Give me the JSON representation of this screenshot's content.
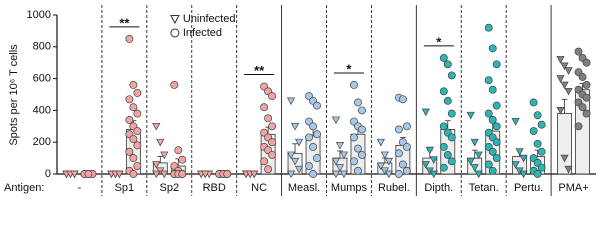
{
  "chart_data": {
    "type": "dot-bar",
    "y_label": "Spots per 10⁶ T cells",
    "row_label": "Antigen:",
    "categories": [
      "-",
      "Sp1",
      "Sp2",
      "RBD",
      "NC",
      "Measl.",
      "Mumps",
      "Rubel.",
      "Dipth.",
      "Tetan.",
      "Pertu.",
      "PMA+"
    ],
    "colors": [
      "#f2a3a3",
      "#f2a3a3",
      "#f2a3a3",
      "#f2a3a3",
      "#f2a3a3",
      "#a8c8ea",
      "#a8c8ea",
      "#a8c8ea",
      "#2bb5b5",
      "#2bb5b5",
      "#2bb5b5",
      "#808080"
    ],
    "dividers": [
      "dashed",
      "dashed",
      "dashed",
      "dashed",
      "solid",
      "dashed",
      "dashed",
      "solid",
      "dashed",
      "dashed",
      "solid"
    ],
    "ylim": [
      0,
      1000
    ],
    "yticks": [
      0,
      200,
      400,
      600,
      800,
      1000
    ],
    "series": [
      {
        "name": "Uninfected",
        "marker": "triangle",
        "means": [
          0,
          0,
          70,
          0,
          0,
          130,
          100,
          70,
          100,
          100,
          110,
          380
        ],
        "errors": [
          0,
          0,
          40,
          0,
          0,
          60,
          45,
          30,
          50,
          50,
          45,
          90
        ],
        "points": [
          [
            0,
            0,
            0,
            0,
            0,
            0
          ],
          [
            0,
            0,
            0,
            0,
            0,
            0
          ],
          [
            300,
            200,
            120,
            60,
            20,
            0,
            0
          ],
          [
            0,
            0,
            0,
            0,
            0
          ],
          [
            0,
            0,
            0,
            0,
            0,
            0
          ],
          [
            460,
            300,
            200,
            120,
            80,
            30,
            0
          ],
          [
            340,
            180,
            120,
            80,
            40,
            0,
            0
          ],
          [
            200,
            120,
            80,
            50,
            20,
            0
          ],
          [
            390,
            150,
            90,
            60,
            20,
            0
          ],
          [
            370,
            200,
            120,
            80,
            40,
            0
          ],
          [
            330,
            140,
            100,
            60,
            20,
            0
          ],
          [
            720,
            680,
            650,
            600,
            560,
            520,
            400,
            100,
            30
          ]
        ]
      },
      {
        "name": "Infected",
        "marker": "circle",
        "means": [
          0,
          280,
          50,
          0,
          250,
          240,
          250,
          180,
          280,
          270,
          110,
          530
        ],
        "errors": [
          0,
          55,
          45,
          0,
          45,
          45,
          50,
          50,
          55,
          55,
          40,
          40
        ],
        "points": [
          [
            0,
            0,
            0,
            0,
            0,
            0,
            0,
            0
          ],
          [
            850,
            560,
            510,
            470,
            420,
            380,
            340,
            300,
            270,
            250,
            220,
            180,
            140,
            100,
            50,
            20,
            0
          ],
          [
            560,
            150,
            90,
            50,
            20,
            0,
            0,
            0,
            0,
            0,
            0,
            0
          ],
          [
            0,
            0,
            0,
            0,
            0,
            0,
            0,
            0,
            0
          ],
          [
            550,
            520,
            490,
            420,
            350,
            300,
            260,
            230,
            200,
            170,
            150,
            120,
            80,
            30
          ],
          [
            490,
            460,
            430,
            330,
            300,
            250,
            230,
            170,
            100,
            50,
            0
          ],
          [
            560,
            450,
            400,
            330,
            300,
            280,
            230,
            160,
            120,
            80,
            20
          ],
          [
            480,
            470,
            300,
            280,
            200,
            170,
            130,
            60,
            20,
            0
          ],
          [
            730,
            690,
            620,
            520,
            460,
            380,
            300,
            260,
            230,
            170,
            120,
            80,
            40
          ],
          [
            920,
            790,
            690,
            590,
            530,
            430,
            380,
            340,
            300,
            260,
            230,
            200,
            170,
            140,
            100,
            60,
            20
          ],
          [
            450,
            370,
            310,
            270,
            190,
            140,
            100,
            70,
            40,
            20,
            0
          ],
          [
            770,
            730,
            700,
            640,
            610,
            560,
            530,
            500,
            480,
            450,
            420,
            380,
            300
          ]
        ]
      }
    ],
    "significance": [
      {
        "category": 1,
        "label": "**"
      },
      {
        "category": 4,
        "label": "**"
      },
      {
        "category": 6,
        "label": "*"
      },
      {
        "category": 8,
        "label": "*"
      }
    ],
    "legend": "top-left"
  }
}
